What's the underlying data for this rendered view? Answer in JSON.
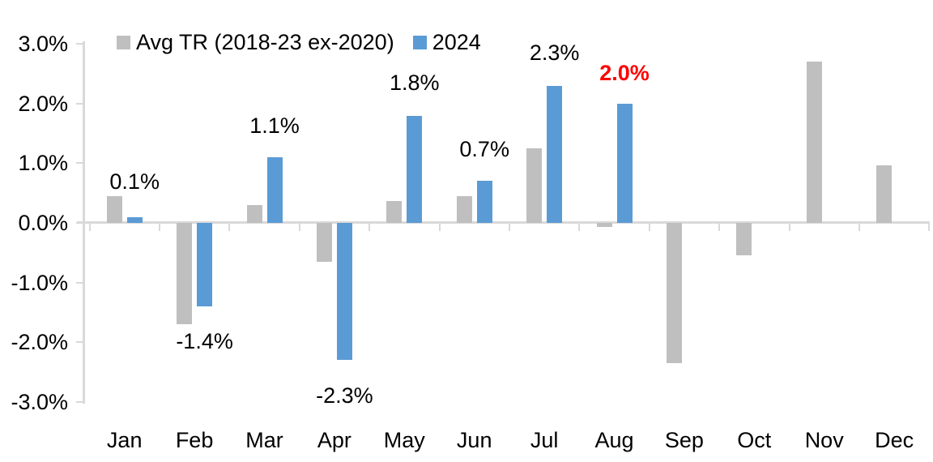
{
  "chart_data": {
    "type": "bar",
    "title": "",
    "categories": [
      "Jan",
      "Feb",
      "Mar",
      "Apr",
      "May",
      "Jun",
      "Jul",
      "Aug",
      "Sep",
      "Oct",
      "Nov",
      "Dec"
    ],
    "series": [
      {
        "name": "Avg TR (2018-23 ex-2020)",
        "color": "#BFBFBF",
        "values": [
          0.45,
          -1.7,
          0.3,
          -0.65,
          0.37,
          0.45,
          1.25,
          -0.07,
          -2.35,
          -0.55,
          2.7,
          0.97
        ]
      },
      {
        "name": "2024",
        "color": "#5B9BD5",
        "values": [
          0.1,
          -1.4,
          1.1,
          -2.3,
          1.8,
          0.7,
          2.3,
          2.0,
          null,
          null,
          null,
          null
        ]
      }
    ],
    "data_labels": [
      {
        "category": "Jan",
        "text": "0.1%",
        "color": "#000000",
        "bold": false
      },
      {
        "category": "Feb",
        "text": "-1.4%",
        "color": "#000000",
        "bold": false
      },
      {
        "category": "Mar",
        "text": "1.1%",
        "color": "#000000",
        "bold": false
      },
      {
        "category": "Apr",
        "text": "-2.3%",
        "color": "#000000",
        "bold": false
      },
      {
        "category": "May",
        "text": "1.8%",
        "color": "#000000",
        "bold": false
      },
      {
        "category": "Jun",
        "text": "0.7%",
        "color": "#000000",
        "bold": false
      },
      {
        "category": "Jul",
        "text": "2.3%",
        "color": "#000000",
        "bold": false
      },
      {
        "category": "Aug",
        "text": "2.0%",
        "color": "#FF0000",
        "bold": true
      }
    ],
    "y_ticks": [
      "3.0%",
      "2.0%",
      "1.0%",
      "0.0%",
      "-1.0%",
      "-2.0%",
      "-3.0%"
    ],
    "ylim": [
      -3,
      3
    ],
    "xlabel": "",
    "ylabel": "",
    "grid": false,
    "legend_position": "top-left",
    "axis_color": "#D9D9D9"
  }
}
